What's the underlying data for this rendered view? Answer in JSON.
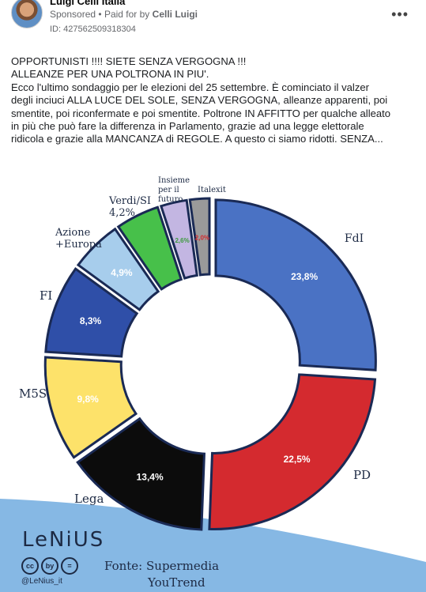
{
  "post": {
    "page_name": "Luigi Celli Italia",
    "sponsored": "Sponsored",
    "paid_for_prefix": "Paid for by",
    "sponsor": "Celli Luigi",
    "ad_id": "ID: 427562509318304",
    "more_icon": "more-horizontal-icon",
    "text_lines": [
      "OPPORTUNISTI !!!! SIETE SENZA VERGOGNA !!!",
      "ALLEANZE PER UNA POLTRONA IN PIU'.",
      "Ecco l'ultimo sondaggio per le elezioni del 25 settembre. È cominciato il valzer",
      "degli inciuci ALLA LUCE DEL SOLE, SENZA VERGOGNA, alleanze apparenti, poi",
      "smentite, poi riconfermate e poi smentite. Poltrone IN AFFITTO per qualche alleato",
      "in più che può fare la differenza in Parlamento, grazie ad una legge elettorale",
      "ridicola e grazie alla MANCANZA di REGOLE. A questo ci siamo ridotti. SENZA..."
    ]
  },
  "image": {
    "brand": "LeNiUS",
    "cc_icons": [
      "cc",
      "by",
      "="
    ],
    "handle": "@LeNius_it",
    "source_line1": "Fonte: Supermedia",
    "source_line2": "YouTrend",
    "accent_blue": "#7fb3e0"
  },
  "chart_data": {
    "type": "pie",
    "style": "donut",
    "title": "",
    "slices": [
      {
        "label": "FdI",
        "value": 23.8,
        "value_label": "23,8%",
        "color": "#4a72c4"
      },
      {
        "label": "PD",
        "value": 22.5,
        "value_label": "22,5%",
        "color": "#d42a2f"
      },
      {
        "label": "Lega",
        "value": 13.4,
        "value_label": "13,4%",
        "color": "#0c0c0c"
      },
      {
        "label": "M5S",
        "value": 9.8,
        "value_label": "9,8%",
        "color": "#fde26a"
      },
      {
        "label": "FI",
        "value": 8.3,
        "value_label": "8,3%",
        "color": "#2f4fa8"
      },
      {
        "label": "Azione +Europa",
        "value": 4.9,
        "value_label": "4,9%",
        "color": "#a7cdec"
      },
      {
        "label": "Verdi/SI 4,2%",
        "value": 4.2,
        "value_label": "",
        "color": "#47c04a"
      },
      {
        "label": "Insieme per il futuro",
        "value": 2.6,
        "value_label": "2,6%",
        "color": "#c3b6e2"
      },
      {
        "label": "Italexit",
        "value": 2.0,
        "value_label": "2,0%",
        "color": "#9a9a9a"
      }
    ]
  }
}
